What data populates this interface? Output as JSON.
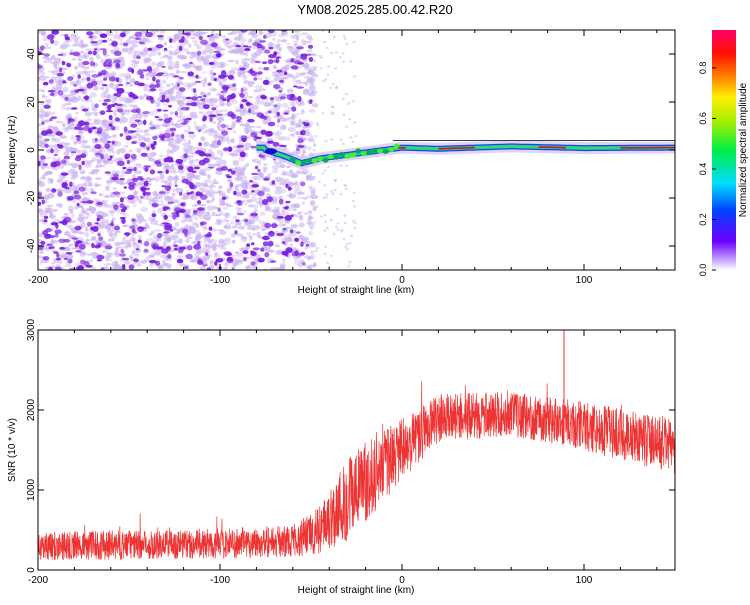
{
  "title": "YM08.2025.285.00.42.R20",
  "colors": {
    "snr_line": "#ee3333",
    "spec_light": "#c9b0f0",
    "spec_dark": "#7a1fe0",
    "ridge_green": "#33dd55",
    "ridge_red": "#dd1111"
  },
  "chart_data": [
    {
      "type": "heatmap",
      "xlabel": "Height of straight line (km)",
      "ylabel": "Frequency (Hz)",
      "xlim": [
        -200,
        150
      ],
      "ylim": [
        -50,
        50
      ],
      "xticks": [
        -200,
        -100,
        0,
        100
      ],
      "yticks": [
        -40,
        -20,
        0,
        20,
        40
      ],
      "colorbar": {
        "label": "Normalized spectral amplitude",
        "range": [
          0,
          0.95
        ],
        "ticks": [
          0,
          0.2,
          0.4,
          0.6,
          0.8
        ],
        "tick_labels": [
          "0.0",
          "0.2",
          "0.4",
          "0.6",
          "0.8"
        ]
      },
      "noise_region_x": [
        -200,
        -50
      ],
      "ridge": [
        {
          "x": -75,
          "y": 0.0
        },
        {
          "x": -65,
          "y": -2.5
        },
        {
          "x": -55,
          "y": -5.5
        },
        {
          "x": -45,
          "y": -3.5
        },
        {
          "x": -30,
          "y": -2.0
        },
        {
          "x": -15,
          "y": -0.5
        },
        {
          "x": 0,
          "y": 1.0
        },
        {
          "x": 20,
          "y": 0.5
        },
        {
          "x": 60,
          "y": 1.5
        },
        {
          "x": 100,
          "y": 0.8
        },
        {
          "x": 150,
          "y": 1.0
        }
      ],
      "grid": false
    },
    {
      "type": "line",
      "xlabel": "Height of straight line (km)",
      "ylabel": "SNR (10 * v/v)",
      "xlim": [
        -200,
        150
      ],
      "ylim": [
        0,
        3000
      ],
      "xticks": [
        -200,
        -100,
        0,
        100
      ],
      "yticks": [
        0,
        1000,
        2000,
        3000
      ],
      "envelope": [
        {
          "x": -200,
          "mean": 300,
          "amp": 180
        },
        {
          "x": -100,
          "mean": 330,
          "amp": 190
        },
        {
          "x": -60,
          "mean": 360,
          "amp": 200
        },
        {
          "x": -45,
          "mean": 500,
          "amp": 300
        },
        {
          "x": -30,
          "mean": 900,
          "amp": 550
        },
        {
          "x": -10,
          "mean": 1300,
          "amp": 450
        },
        {
          "x": 0,
          "mean": 1500,
          "amp": 400
        },
        {
          "x": 20,
          "mean": 1900,
          "amp": 300
        },
        {
          "x": 60,
          "mean": 1950,
          "amp": 280
        },
        {
          "x": 90,
          "mean": 1850,
          "amp": 300
        },
        {
          "x": 150,
          "mean": 1550,
          "amp": 350
        }
      ],
      "series": [
        {
          "values": "dense noisy SNR trace"
        }
      ],
      "grid": false
    }
  ]
}
